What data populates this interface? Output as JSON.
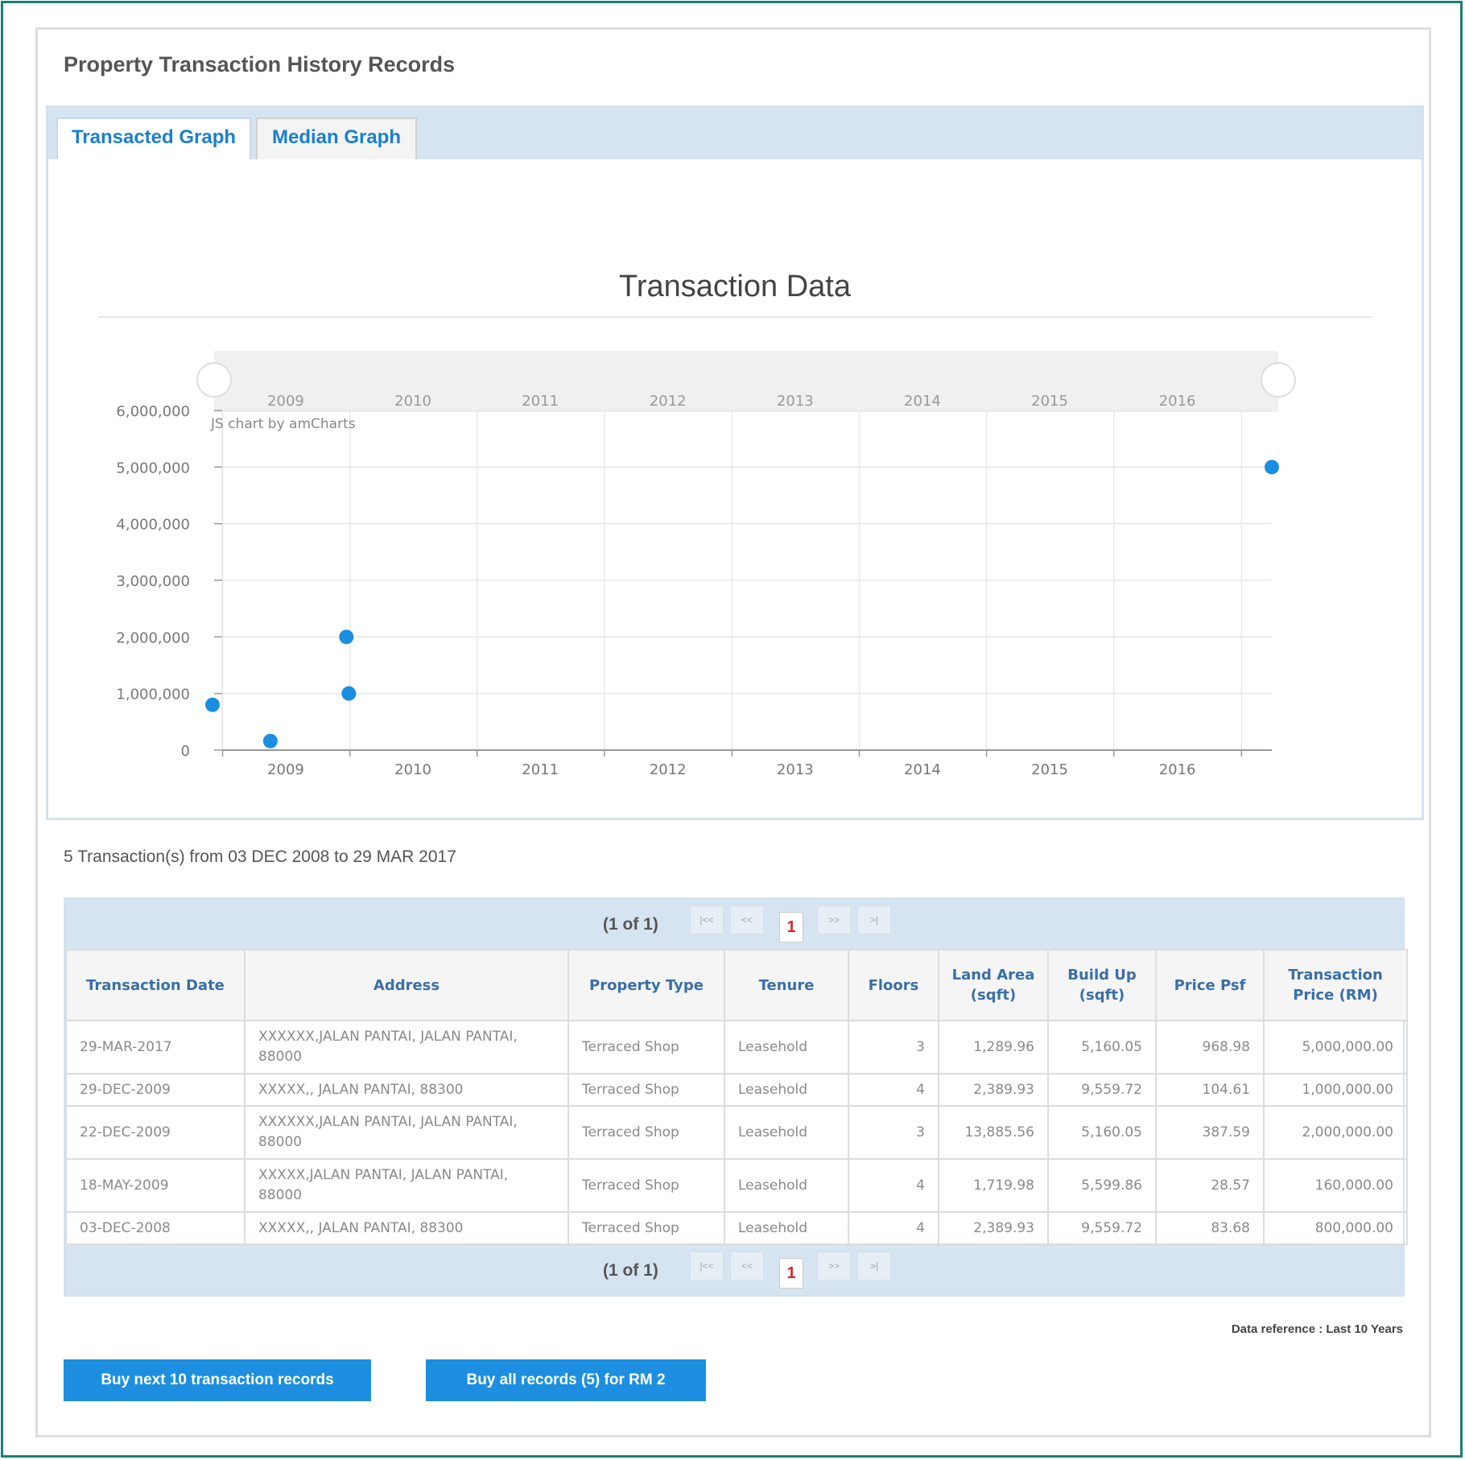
{
  "panel": {
    "title": "Property Transaction History Records"
  },
  "tabs": [
    {
      "label": "Transacted Graph",
      "active": true
    },
    {
      "label": "Median Graph",
      "active": false
    }
  ],
  "chart_data": {
    "type": "scatter",
    "title": "Transaction Data",
    "watermark": "JS chart by amCharts",
    "x_ticks": [
      "2009",
      "2010",
      "2011",
      "2012",
      "2013",
      "2014",
      "2015",
      "2016"
    ],
    "y_ticks": [
      "0",
      "1,000,000",
      "2,000,000",
      "3,000,000",
      "4,000,000",
      "5,000,000",
      "6,000,000"
    ],
    "xlim": [
      "2008-12-03",
      "2017-03-29"
    ],
    "ylim": [
      0,
      6000000
    ],
    "grid": true,
    "color": "#1a8ee0",
    "points": [
      {
        "x": "2008-12-03",
        "y": 800000
      },
      {
        "x": "2009-05-18",
        "y": 160000
      },
      {
        "x": "2009-12-22",
        "y": 2000000
      },
      {
        "x": "2009-12-29",
        "y": 1000000
      },
      {
        "x": "2017-03-29",
        "y": 5000000
      }
    ]
  },
  "summary": "5 Transaction(s) from 03 DEC 2008 to 29 MAR 2017",
  "pager": {
    "label": "(1 of 1)",
    "first": "|<<",
    "prev": "<<",
    "page": "1",
    "next": ">>",
    "last": ">|"
  },
  "table": {
    "columns": [
      "Transaction Date",
      "Address",
      "Property Type",
      "Tenure",
      "Floors",
      "Land Area (sqft)",
      "Build Up (sqft)",
      "Price Psf",
      "Transaction Price (RM)"
    ],
    "rows": [
      [
        "29-MAR-2017",
        "XXXXXX,JALAN PANTAI, JALAN PANTAI, 88000",
        "Terraced Shop",
        "Leasehold",
        "3",
        "1,289.96",
        "5,160.05",
        "968.98",
        "5,000,000.00"
      ],
      [
        "29-DEC-2009",
        "XXXXX,, JALAN PANTAI, 88300",
        "Terraced Shop",
        "Leasehold",
        "4",
        "2,389.93",
        "9,559.72",
        "104.61",
        "1,000,000.00"
      ],
      [
        "22-DEC-2009",
        "XXXXXX,JALAN PANTAI, JALAN PANTAI, 88000",
        "Terraced Shop",
        "Leasehold",
        "3",
        "13,885.56",
        "5,160.05",
        "387.59",
        "2,000,000.00"
      ],
      [
        "18-MAY-2009",
        "XXXXX,JALAN PANTAI, JALAN PANTAI, 88000",
        "Terraced Shop",
        "Leasehold",
        "4",
        "1,719.98",
        "5,599.86",
        "28.57",
        "160,000.00"
      ],
      [
        "03-DEC-2008",
        "XXXXX,, JALAN PANTAI, 88300",
        "Terraced Shop",
        "Leasehold",
        "4",
        "2,389.93",
        "9,559.72",
        "83.68",
        "800,000.00"
      ]
    ]
  },
  "data_reference": "Data reference : Last 10 Years",
  "buttons": {
    "buy_next": "Buy next 10 transaction records",
    "buy_all": "Buy all records (5) for RM 2"
  }
}
